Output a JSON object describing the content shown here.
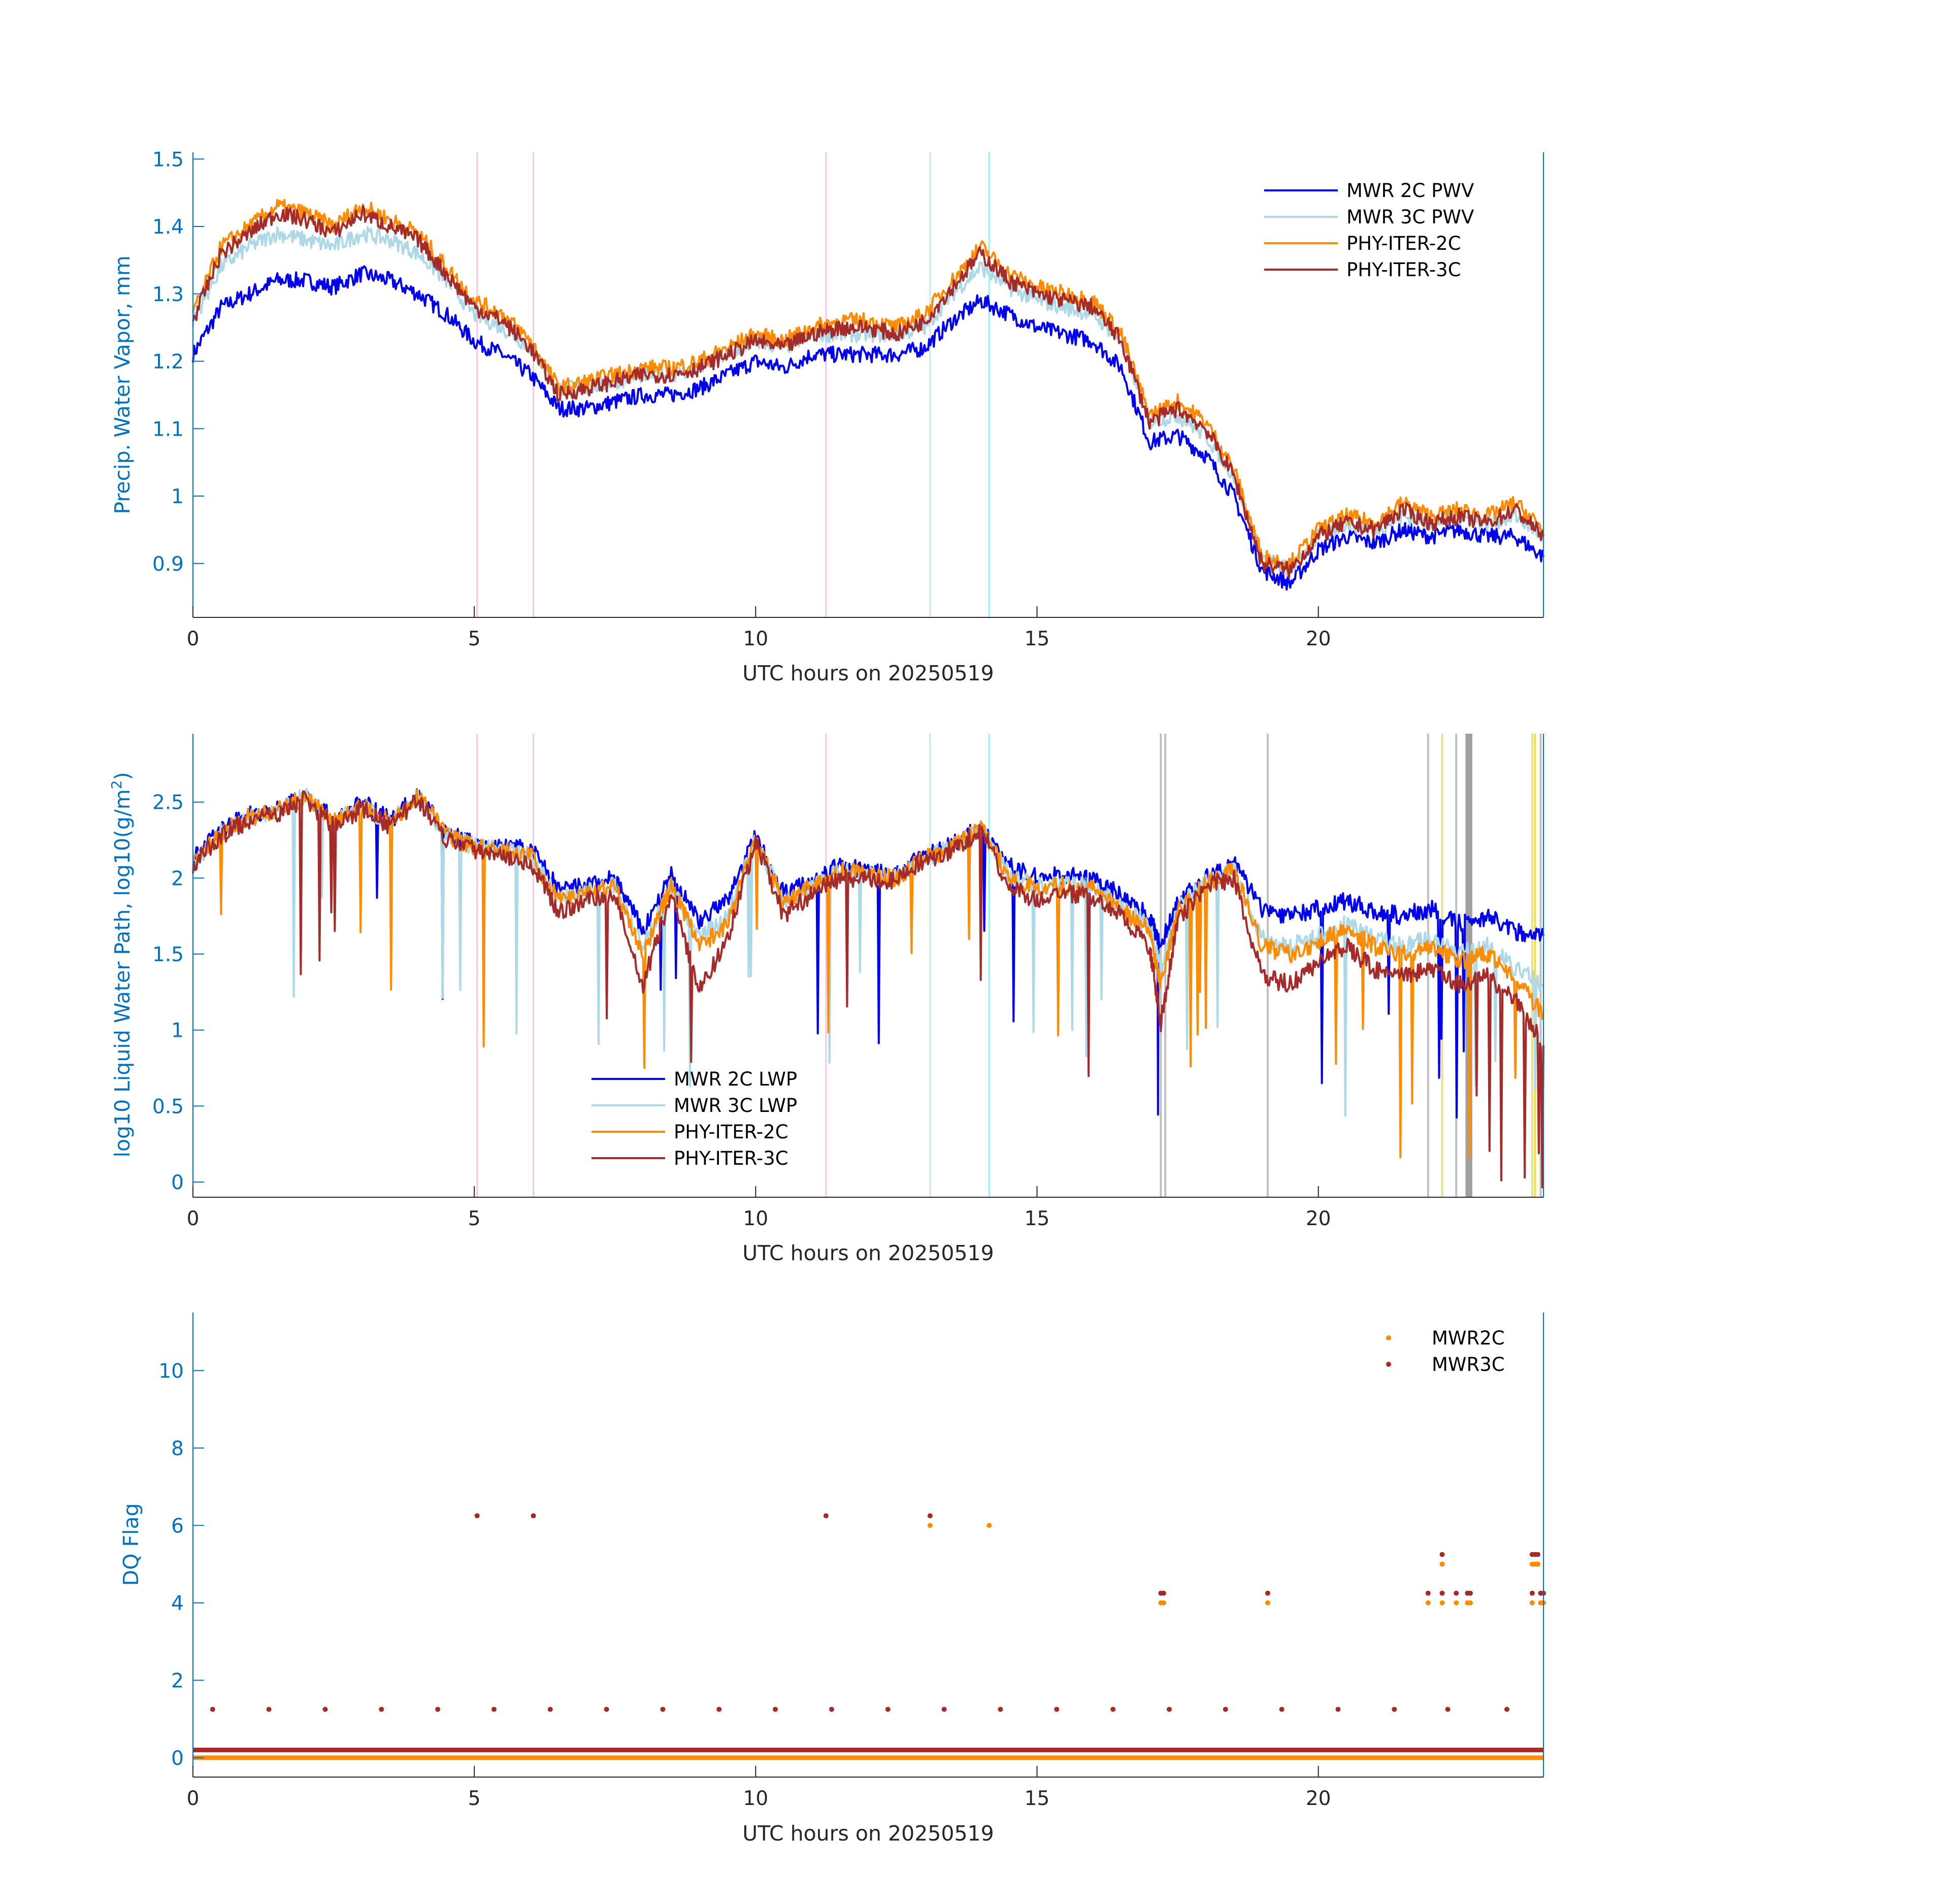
{
  "chart_data": [
    {
      "type": "line",
      "name": "pwv",
      "xlabel": "UTC hours on 20250519",
      "ylabel": "Precip. Water Vapor, mm",
      "xlim": [
        0,
        24
      ],
      "ylim": [
        0.82,
        1.51
      ],
      "xticks": [
        "0",
        "5",
        "10",
        "15",
        "20"
      ],
      "yticks": [
        "0.9",
        "1",
        "1.1",
        "1.2",
        "1.3",
        "1.4",
        "1.5"
      ],
      "legend_position": "top-right",
      "x": [
        0,
        0.5,
        1,
        1.5,
        2,
        2.5,
        3,
        3.5,
        4,
        4.5,
        5,
        5.5,
        6,
        6.5,
        7,
        7.5,
        8,
        8.5,
        9,
        9.5,
        10,
        10.5,
        11,
        11.5,
        12,
        12.5,
        13,
        13.5,
        14,
        14.5,
        15,
        15.5,
        16,
        16.5,
        17,
        17.5,
        18,
        18.5,
        19,
        19.5,
        20,
        20.5,
        21,
        21.5,
        22,
        22.5,
        23,
        23.5,
        24
      ],
      "series": [
        {
          "name": "MWR 2C PWV",
          "color": "#0000EE",
          "values": [
            1.21,
            1.28,
            1.3,
            1.32,
            1.32,
            1.31,
            1.33,
            1.32,
            1.3,
            1.27,
            1.23,
            1.21,
            1.18,
            1.13,
            1.13,
            1.14,
            1.15,
            1.15,
            1.16,
            1.18,
            1.2,
            1.19,
            1.21,
            1.21,
            1.21,
            1.21,
            1.22,
            1.26,
            1.29,
            1.27,
            1.25,
            1.24,
            1.23,
            1.19,
            1.08,
            1.09,
            1.06,
            1.0,
            0.89,
            0.87,
            0.92,
            0.94,
            0.93,
            0.95,
            0.94,
            0.95,
            0.94,
            0.94,
            0.91
          ]
        },
        {
          "name": "MWR 3C PWV",
          "color": "#ADD8E6",
          "values": [
            1.26,
            1.34,
            1.37,
            1.39,
            1.38,
            1.37,
            1.39,
            1.38,
            1.36,
            1.32,
            1.27,
            1.25,
            1.22,
            1.16,
            1.16,
            1.17,
            1.18,
            1.18,
            1.19,
            1.21,
            1.23,
            1.22,
            1.24,
            1.24,
            1.24,
            1.24,
            1.25,
            1.3,
            1.34,
            1.31,
            1.29,
            1.28,
            1.27,
            1.23,
            1.11,
            1.12,
            1.09,
            1.03,
            0.91,
            0.89,
            0.94,
            0.96,
            0.95,
            0.97,
            0.96,
            0.97,
            0.96,
            0.97,
            0.94
          ]
        },
        {
          "name": "PHY-ITER-2C",
          "color": "#FF8C00",
          "values": [
            1.27,
            1.37,
            1.4,
            1.43,
            1.42,
            1.4,
            1.43,
            1.41,
            1.39,
            1.34,
            1.29,
            1.27,
            1.23,
            1.16,
            1.17,
            1.18,
            1.19,
            1.19,
            1.2,
            1.22,
            1.24,
            1.23,
            1.25,
            1.26,
            1.26,
            1.25,
            1.27,
            1.32,
            1.37,
            1.33,
            1.31,
            1.3,
            1.29,
            1.24,
            1.12,
            1.14,
            1.11,
            1.04,
            0.91,
            0.9,
            0.95,
            0.97,
            0.96,
            0.99,
            0.97,
            0.98,
            0.97,
            0.99,
            0.95
          ]
        },
        {
          "name": "PHY-ITER-3C",
          "color": "#A52A2A",
          "values": [
            1.26,
            1.36,
            1.39,
            1.42,
            1.41,
            1.39,
            1.42,
            1.4,
            1.38,
            1.33,
            1.28,
            1.26,
            1.22,
            1.15,
            1.16,
            1.17,
            1.18,
            1.18,
            1.19,
            1.21,
            1.23,
            1.22,
            1.24,
            1.25,
            1.25,
            1.24,
            1.26,
            1.31,
            1.36,
            1.32,
            1.3,
            1.29,
            1.28,
            1.23,
            1.11,
            1.13,
            1.1,
            1.03,
            0.9,
            0.89,
            0.94,
            0.96,
            0.95,
            0.98,
            0.96,
            0.97,
            0.96,
            0.98,
            0.94
          ]
        }
      ]
    },
    {
      "type": "line",
      "name": "lwp",
      "xlabel": "UTC hours on 20250519",
      "ylabel_main": "log10 Liquid Water Path, log10(g/m",
      "ylabel_sup": "2",
      "ylabel_end": ")",
      "xlim": [
        0,
        24
      ],
      "ylim": [
        -0.1,
        2.95
      ],
      "xticks": [
        "0",
        "5",
        "10",
        "15",
        "20"
      ],
      "yticks": [
        "0",
        "0.5",
        "1",
        "1.5",
        "2",
        "2.5"
      ],
      "legend_position": "bottom-left",
      "x": [
        0,
        0.5,
        1,
        1.5,
        2,
        2.5,
        3,
        3.5,
        4,
        4.5,
        5,
        5.5,
        6,
        6.5,
        7,
        7.5,
        8,
        8.5,
        9,
        9.5,
        10,
        10.5,
        11,
        11.5,
        12,
        12.5,
        13,
        13.5,
        14,
        14.5,
        15,
        15.5,
        16,
        16.5,
        17,
        17.2,
        17.5,
        18,
        18.5,
        19,
        19.5,
        20,
        20.5,
        21,
        21.5,
        22,
        22.5,
        23,
        23.5,
        24
      ],
      "series": [
        {
          "name": "MWR 2C LWP",
          "color": "#0000EE",
          "values": [
            2.12,
            2.32,
            2.42,
            2.45,
            2.55,
            2.38,
            2.5,
            2.38,
            2.55,
            2.3,
            2.22,
            2.2,
            2.2,
            1.92,
            1.95,
            2.0,
            1.65,
            2.02,
            1.72,
            1.85,
            2.28,
            1.9,
            1.98,
            2.08,
            2.05,
            2.02,
            2.15,
            2.22,
            2.35,
            2.08,
            2.0,
            2.02,
            2.0,
            1.88,
            1.75,
            1.55,
            1.85,
            2.0,
            2.1,
            1.8,
            1.75,
            1.8,
            1.85,
            1.78,
            1.75,
            1.8,
            1.7,
            1.75,
            1.65,
            1.62
          ]
        },
        {
          "name": "MWR 3C LWP",
          "color": "#ADD8E6",
          "values": [
            2.1,
            2.3,
            2.4,
            2.44,
            2.54,
            2.36,
            2.48,
            2.36,
            2.54,
            2.28,
            2.21,
            2.18,
            2.15,
            1.85,
            1.9,
            1.95,
            1.55,
            1.95,
            1.6,
            1.75,
            2.25,
            1.85,
            1.95,
            2.05,
            2.02,
            2.0,
            2.13,
            2.2,
            2.33,
            2.02,
            1.95,
            1.97,
            1.95,
            1.82,
            1.68,
            1.4,
            1.8,
            1.97,
            2.05,
            1.6,
            1.55,
            1.62,
            1.7,
            1.6,
            1.55,
            1.6,
            1.5,
            1.55,
            1.4,
            1.3
          ]
        },
        {
          "name": "PHY-ITER-2C",
          "color": "#FF8C00",
          "values": [
            2.1,
            2.3,
            2.4,
            2.44,
            2.54,
            2.36,
            2.48,
            2.36,
            2.54,
            2.28,
            2.21,
            2.18,
            2.15,
            1.85,
            1.9,
            1.95,
            1.5,
            1.95,
            1.55,
            1.7,
            2.25,
            1.85,
            1.95,
            2.05,
            2.02,
            2.0,
            2.13,
            2.2,
            2.33,
            2.0,
            1.93,
            1.95,
            1.93,
            1.8,
            1.65,
            1.3,
            1.78,
            1.96,
            2.05,
            1.55,
            1.5,
            1.58,
            1.68,
            1.55,
            1.5,
            1.55,
            1.45,
            1.5,
            1.35,
            1.1
          ]
        },
        {
          "name": "PHY-ITER-3C",
          "color": "#A52A2A",
          "values": [
            2.08,
            2.28,
            2.38,
            2.42,
            2.52,
            2.34,
            2.46,
            2.34,
            2.52,
            2.26,
            2.19,
            2.16,
            2.1,
            1.78,
            1.85,
            1.9,
            1.3,
            1.9,
            1.25,
            1.6,
            2.24,
            1.75,
            1.9,
            2.0,
            2.0,
            1.98,
            2.12,
            2.18,
            2.32,
            1.95,
            1.85,
            1.9,
            1.88,
            1.75,
            1.55,
            1.05,
            1.72,
            1.95,
            2.0,
            1.35,
            1.3,
            1.45,
            1.55,
            1.4,
            1.35,
            1.4,
            1.3,
            1.35,
            1.2,
            0.9
          ]
        }
      ]
    },
    {
      "type": "scatter",
      "name": "dq",
      "xlabel": "UTC hours on 20250519",
      "ylabel": "DQ Flag",
      "xlim": [
        0,
        24
      ],
      "ylim": [
        -0.5,
        11.5
      ],
      "xticks": [
        "0",
        "5",
        "10",
        "15",
        "20"
      ],
      "yticks": [
        "0",
        "2",
        "4",
        "6",
        "8",
        "10"
      ],
      "legend_position": "top-right",
      "series": [
        {
          "name": "MWR2C",
          "color": "#FF8C00",
          "baseline": 0,
          "points": [
            [
              13.1,
              6
            ],
            [
              14.15,
              6
            ],
            [
              17.2,
              4
            ],
            [
              17.25,
              4
            ],
            [
              19.1,
              4
            ],
            [
              21.95,
              4
            ],
            [
              22.2,
              5
            ],
            [
              22.2,
              4
            ],
            [
              22.45,
              4
            ],
            [
              22.65,
              4
            ],
            [
              22.7,
              4
            ],
            [
              23.8,
              5
            ],
            [
              23.85,
              5
            ],
            [
              23.9,
              5
            ],
            [
              23.8,
              4
            ],
            [
              23.95,
              4
            ],
            [
              24,
              4
            ]
          ]
        },
        {
          "name": "MWR3C",
          "color": "#A52A2A",
          "baseline": 0.2,
          "points": [
            [
              0.35,
              1.25
            ],
            [
              1.35,
              1.25
            ],
            [
              2.35,
              1.25
            ],
            [
              3.35,
              1.25
            ],
            [
              4.35,
              1.25
            ],
            [
              5.35,
              1.25
            ],
            [
              6.35,
              1.25
            ],
            [
              7.35,
              1.25
            ],
            [
              8.35,
              1.25
            ],
            [
              9.35,
              1.25
            ],
            [
              10.35,
              1.25
            ],
            [
              11.35,
              1.25
            ],
            [
              12.35,
              1.25
            ],
            [
              13.35,
              1.25
            ],
            [
              14.35,
              1.25
            ],
            [
              15.35,
              1.25
            ],
            [
              16.35,
              1.25
            ],
            [
              17.35,
              1.25
            ],
            [
              18.35,
              1.25
            ],
            [
              19.35,
              1.25
            ],
            [
              20.35,
              1.25
            ],
            [
              21.35,
              1.25
            ],
            [
              22.3,
              1.25
            ],
            [
              23.35,
              1.25
            ],
            [
              5.05,
              6.25
            ],
            [
              6.05,
              6.25
            ],
            [
              11.25,
              6.25
            ],
            [
              13.1,
              6.25
            ],
            [
              17.2,
              4.25
            ],
            [
              17.25,
              4.25
            ],
            [
              19.1,
              4.25
            ],
            [
              21.95,
              4.25
            ],
            [
              22.2,
              5.25
            ],
            [
              22.2,
              4.25
            ],
            [
              22.45,
              4.25
            ],
            [
              22.65,
              4.25
            ],
            [
              22.7,
              4.25
            ],
            [
              23.8,
              5.25
            ],
            [
              23.85,
              5.25
            ],
            [
              23.9,
              5.25
            ],
            [
              23.8,
              4.25
            ],
            [
              23.95,
              4.25
            ],
            [
              24,
              4.25
            ]
          ]
        }
      ]
    }
  ],
  "flag_lines": [
    {
      "x": 5.05,
      "color": "#F5C6E8"
    },
    {
      "x": 6.05,
      "color": "#F5C6E8"
    },
    {
      "x": 11.25,
      "color": "#F5C6E8"
    },
    {
      "x": 13.1,
      "color": "#D0E4F0"
    },
    {
      "x": 14.15,
      "color": "#7FFFFF"
    }
  ],
  "lwp_flag_lines": [
    {
      "x": 17.2,
      "color": "#C0C0C0"
    },
    {
      "x": 17.28,
      "color": "#C0C0C0"
    },
    {
      "x": 19.1,
      "color": "#C0C0C0"
    },
    {
      "x": 21.95,
      "color": "#C0C0C0"
    },
    {
      "x": 22.2,
      "color": "#E6E08A"
    },
    {
      "x": 22.45,
      "color": "#C0C0C0"
    },
    {
      "x": 22.65,
      "color": "#A0A0A0"
    },
    {
      "x": 22.7,
      "color": "#A0A0A0"
    },
    {
      "x": 23.8,
      "color": "#E6E08A"
    },
    {
      "x": 23.85,
      "color": "#F0E040"
    },
    {
      "x": 23.95,
      "color": "#C0C0C0"
    }
  ]
}
